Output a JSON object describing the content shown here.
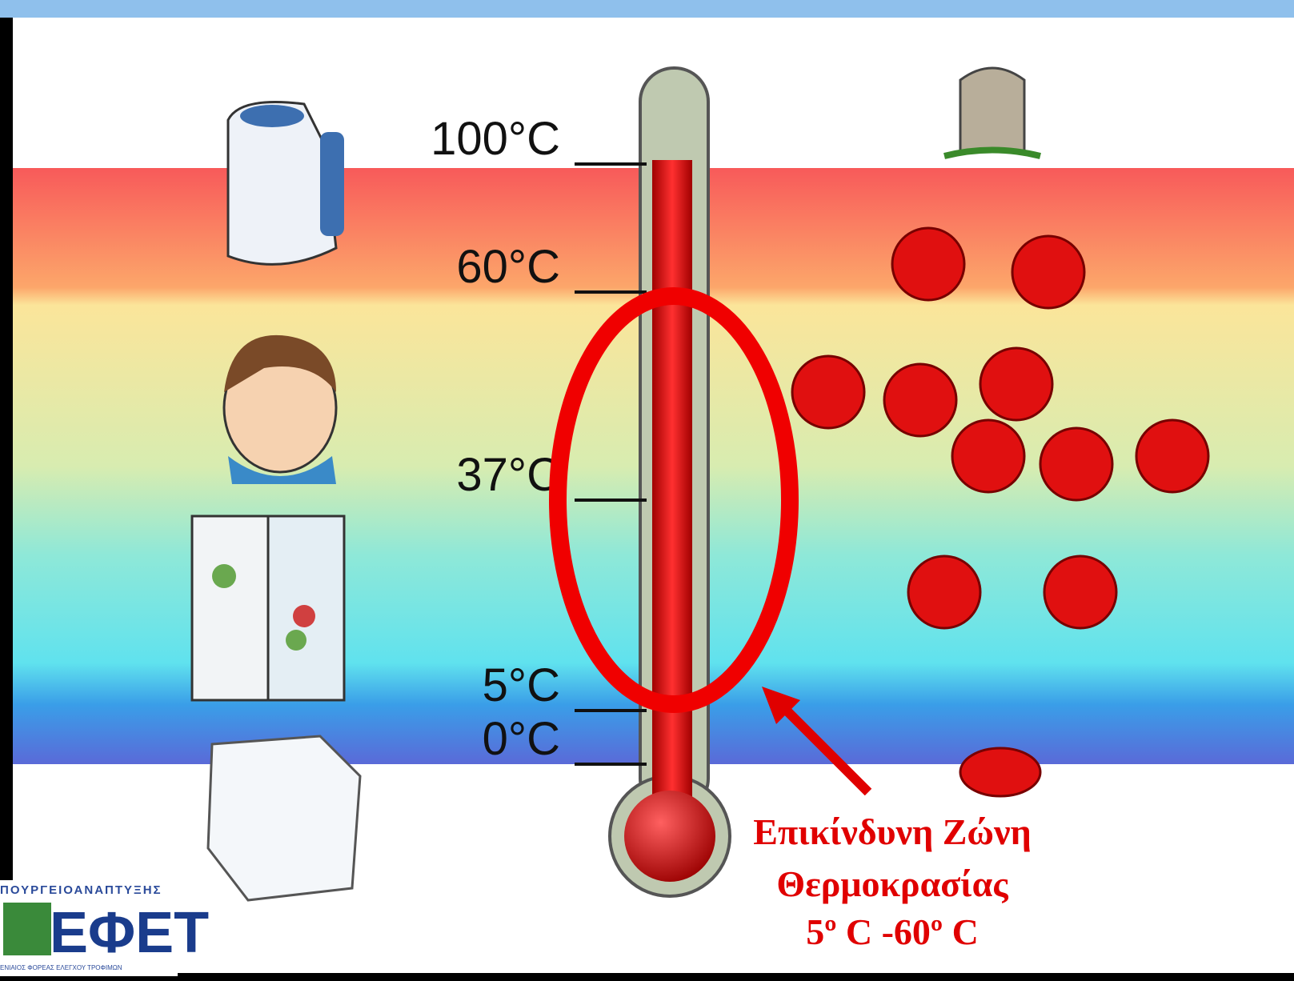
{
  "scale_labels": [
    "100°C",
    "60°C",
    "37°C",
    "5°C",
    "0°C"
  ],
  "annotation": [
    "Επικίνδυνη Ζώνη",
    "Θερμοκρασίας",
    "5º C -60º C"
  ],
  "logo": {
    "ministry": "ΠΟΥΡΓΕΙΟΑΝΑΠΤΥΞΗΣ",
    "name": "ΕΦΕΤ",
    "subtitle": "ΕΝΙΑΙΟΣ ΦΟΡΕΑΣ ΕΛΕΓΧΟΥ ΤΡΟΦΙΜΩΝ"
  }
}
